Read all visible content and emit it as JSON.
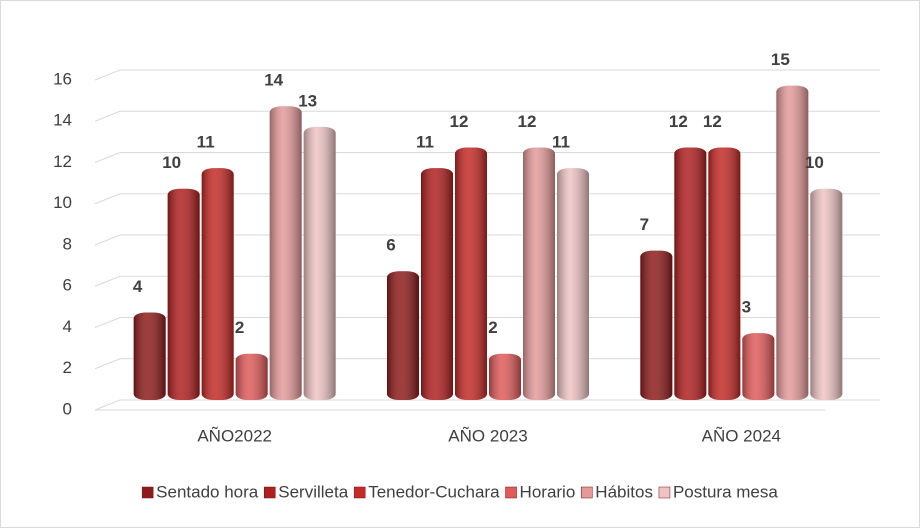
{
  "chart_data": {
    "type": "bar",
    "categories": [
      "AÑO2022",
      "AÑO 2023",
      "AÑO 2024"
    ],
    "series": [
      {
        "name": "Sentado hora",
        "color": "#8e1b1b",
        "values": [
          4,
          6,
          7
        ]
      },
      {
        "name": "Servilleta",
        "color": "#b01f1f",
        "values": [
          10,
          11,
          12
        ]
      },
      {
        "name": "Tenedor-Cuchara",
        "color": "#c42a26",
        "values": [
          11,
          12,
          12
        ]
      },
      {
        "name": "Horario",
        "color": "#e05a5a",
        "values": [
          2,
          2,
          3
        ]
      },
      {
        "name": "Hábitos",
        "color": "#e49a9a",
        "values": [
          14,
          12,
          15
        ]
      },
      {
        "name": "Postura mesa",
        "color": "#eec3c3",
        "values": [
          13,
          11,
          10
        ]
      }
    ],
    "ylim": [
      0,
      16
    ],
    "yticks": [
      0,
      2,
      4,
      6,
      8,
      10,
      12,
      14,
      16
    ],
    "grid": true,
    "legend": "bottom"
  }
}
